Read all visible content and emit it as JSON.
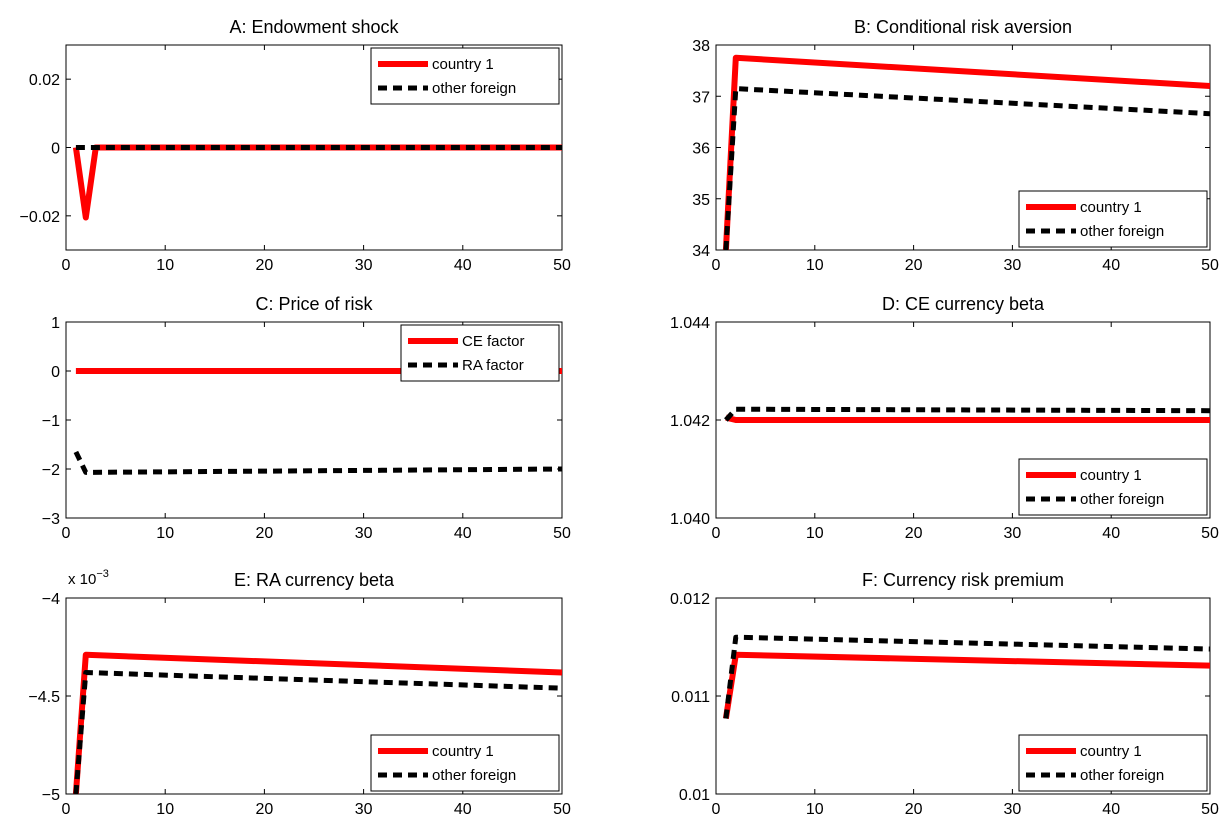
{
  "colors": {
    "country": "#ff0000",
    "foreign": "#000000",
    "axis": "#000000",
    "background": "#ffffff"
  },
  "chart_data": [
    {
      "id": "A",
      "type": "line",
      "title": "A: Endowment shock",
      "xlim": [
        0,
        50
      ],
      "ylim": [
        -0.03,
        0.03
      ],
      "xticks": [
        0,
        10,
        20,
        30,
        40,
        50
      ],
      "xticklabels": [
        "0",
        "10",
        "20",
        "30",
        "40",
        "50"
      ],
      "yticks": [
        -0.02,
        0,
        0.02
      ],
      "yticklabels": [
        "−0.02",
        "0",
        "0.02"
      ],
      "exponent_label": "",
      "legend": "top-right",
      "series": [
        {
          "name": "country 1",
          "style": "solid",
          "x": [
            1,
            2,
            3,
            50
          ],
          "y": [
            0,
            -0.0205,
            0,
            0
          ]
        },
        {
          "name": "other foreign",
          "style": "dashed",
          "x": [
            1,
            50
          ],
          "y": [
            0,
            0
          ]
        }
      ]
    },
    {
      "id": "B",
      "type": "line",
      "title": "B: Conditional risk aversion",
      "xlim": [
        0,
        50
      ],
      "ylim": [
        34,
        38
      ],
      "xticks": [
        0,
        10,
        20,
        30,
        40,
        50
      ],
      "xticklabels": [
        "0",
        "10",
        "20",
        "30",
        "40",
        "50"
      ],
      "yticks": [
        34,
        35,
        36,
        37,
        38
      ],
      "yticklabels": [
        "34",
        "35",
        "36",
        "37",
        "38"
      ],
      "exponent_label": "",
      "legend": "bottom-right",
      "series": [
        {
          "name": "country 1",
          "style": "solid",
          "x": [
            1,
            2,
            50
          ],
          "y": [
            34,
            37.75,
            37.2
          ]
        },
        {
          "name": "other foreign",
          "style": "dashed",
          "x": [
            1,
            2,
            50
          ],
          "y": [
            34,
            37.15,
            36.66
          ]
        }
      ]
    },
    {
      "id": "C",
      "type": "line",
      "title": "C: Price of risk",
      "xlim": [
        0,
        50
      ],
      "ylim": [
        -3,
        1
      ],
      "xticks": [
        0,
        10,
        20,
        30,
        40,
        50
      ],
      "xticklabels": [
        "0",
        "10",
        "20",
        "30",
        "40",
        "50"
      ],
      "yticks": [
        -3,
        -2,
        -1,
        0,
        1
      ],
      "yticklabels": [
        "−3",
        "−2",
        "−1",
        "0",
        "1"
      ],
      "exponent_label": "",
      "legend": "top-right",
      "series": [
        {
          "name": "CE factor",
          "style": "solid",
          "x": [
            1,
            50
          ],
          "y": [
            0,
            0
          ]
        },
        {
          "name": "RA factor",
          "style": "dashed",
          "x": [
            1,
            2,
            50
          ],
          "y": [
            -1.65,
            -2.07,
            -2.0
          ]
        }
      ]
    },
    {
      "id": "D",
      "type": "line",
      "title": "D: CE currency beta",
      "xlim": [
        0,
        50
      ],
      "ylim": [
        1.04,
        1.044
      ],
      "xticks": [
        0,
        10,
        20,
        30,
        40,
        50
      ],
      "xticklabels": [
        "0",
        "10",
        "20",
        "30",
        "40",
        "50"
      ],
      "yticks": [
        1.04,
        1.042,
        1.044
      ],
      "yticklabels": [
        "1.040",
        "1.042",
        "1.044"
      ],
      "exponent_label": "",
      "legend": "bottom-right",
      "series": [
        {
          "name": "country 1",
          "style": "solid",
          "x": [
            1,
            2,
            50
          ],
          "y": [
            1.04205,
            1.042,
            1.042
          ]
        },
        {
          "name": "other foreign",
          "style": "dashed",
          "x": [
            1,
            2,
            50
          ],
          "y": [
            1.042,
            1.04222,
            1.04219
          ]
        }
      ]
    },
    {
      "id": "E",
      "type": "line",
      "title": "E: RA currency beta",
      "xlim": [
        0,
        50
      ],
      "ylim": [
        -5,
        -4
      ],
      "xticks": [
        0,
        10,
        20,
        30,
        40,
        50
      ],
      "xticklabels": [
        "0",
        "10",
        "20",
        "30",
        "40",
        "50"
      ],
      "yticks": [
        -5,
        -4.5,
        -4
      ],
      "yticklabels": [
        "−5",
        "−4.5",
        "−4"
      ],
      "exponent_label": "x 10",
      "exponent_power": "−3",
      "legend": "bottom-right",
      "series": [
        {
          "name": "country 1",
          "style": "solid",
          "x": [
            1,
            2,
            50
          ],
          "y": [
            -5.0,
            -4.29,
            -4.38
          ]
        },
        {
          "name": "other foreign",
          "style": "dashed",
          "x": [
            1,
            2,
            50
          ],
          "y": [
            -5.0,
            -4.38,
            -4.46
          ]
        }
      ]
    },
    {
      "id": "F",
      "type": "line",
      "title": "F: Currency risk premium",
      "xlim": [
        0,
        50
      ],
      "ylim": [
        0.01,
        0.012
      ],
      "xticks": [
        0,
        10,
        20,
        30,
        40,
        50
      ],
      "xticklabels": [
        "0",
        "10",
        "20",
        "30",
        "40",
        "50"
      ],
      "yticks": [
        0.01,
        0.011,
        0.012
      ],
      "yticklabels": [
        "0.01",
        "0.011",
        "0.012"
      ],
      "exponent_label": "",
      "legend": "bottom-right",
      "series": [
        {
          "name": "country 1",
          "style": "solid",
          "x": [
            1,
            2,
            50
          ],
          "y": [
            0.01077,
            0.01142,
            0.01131
          ]
        },
        {
          "name": "other foreign",
          "style": "dashed",
          "x": [
            1,
            2,
            50
          ],
          "y": [
            0.01077,
            0.0116,
            0.01148
          ]
        }
      ]
    }
  ]
}
